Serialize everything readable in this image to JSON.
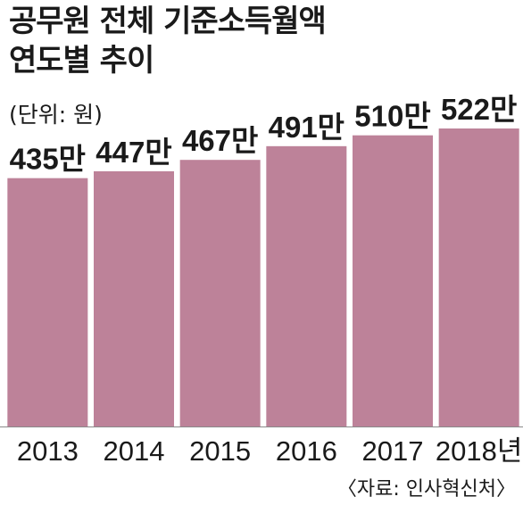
{
  "title_line1": "공무원 전체 기준소득월액",
  "title_line2": "연도별 추이",
  "unit": "(단위: 원)",
  "source": "〈자료: 인사혁신처〉",
  "colors": {
    "bar": "#bd8299",
    "axis": "#8a8a8a",
    "text": "#1a1a1a"
  },
  "chart_data": {
    "type": "bar",
    "categories": [
      "2013",
      "2014",
      "2015",
      "2016",
      "2017",
      "2018년"
    ],
    "values": [
      435,
      447,
      467,
      491,
      510,
      522
    ],
    "data_labels": [
      "435만",
      "447만",
      "467만",
      "491만",
      "510만",
      "522만"
    ],
    "ylim": [
      0,
      522
    ]
  }
}
